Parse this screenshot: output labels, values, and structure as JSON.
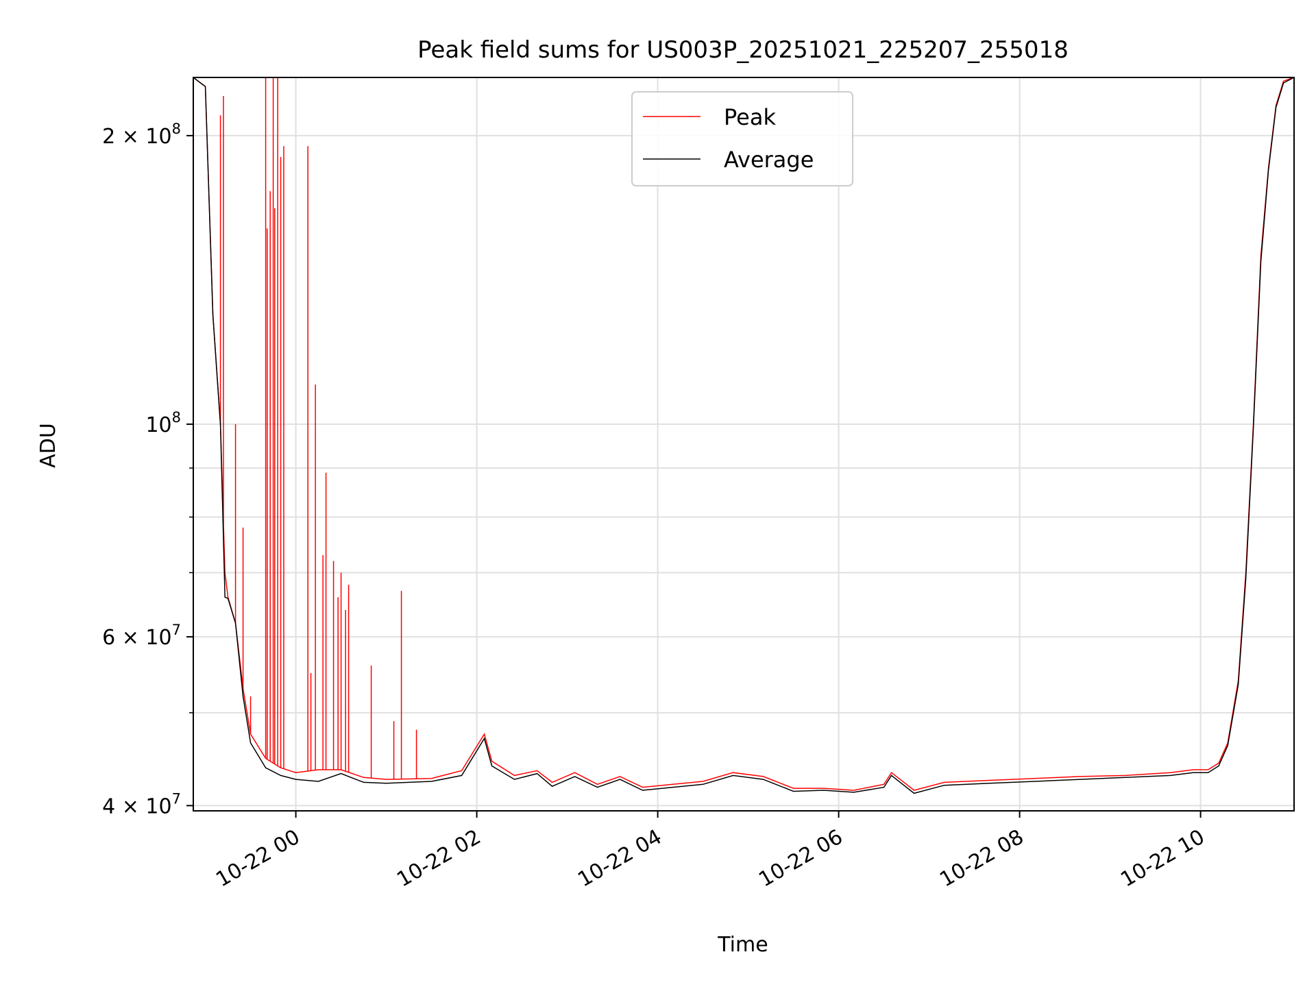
{
  "chart_data": {
    "type": "line",
    "title": "Peak field sums for US003P_20251021_225207_255018",
    "xlabel": "Time",
    "ylabel": "ADU",
    "x_ticks": [
      "10-22 00",
      "10-22 02",
      "10-22 04",
      "10-22 06",
      "10-22 08",
      "10-22 10"
    ],
    "y_ticks": [
      {
        "value": 40000000,
        "base": "4 × 10",
        "exp": "7"
      },
      {
        "value": 60000000,
        "base": "6 × 10",
        "exp": "7"
      },
      {
        "value": 100000000,
        "base": "10",
        "exp": "8"
      },
      {
        "value": 200000000,
        "base": "2 × 10",
        "exp": "8"
      }
    ],
    "y_scale": "log",
    "xlim": [
      "2025-10-21 22:52",
      "2025-10-22 11:02"
    ],
    "ylim": [
      39500000,
      230000000
    ],
    "grid": true,
    "legend_position": "top-center",
    "series": [
      {
        "name": "Peak",
        "color": "#ff0000",
        "x": [
          "2025-10-21 22:52",
          "2025-10-21 23:00",
          "2025-10-21 23:05",
          "2025-10-21 23:10",
          "2025-10-21 23:13",
          "2025-10-21 23:15",
          "2025-10-21 23:20",
          "2025-10-21 23:25",
          "2025-10-21 23:30",
          "2025-10-21 23:40",
          "2025-10-21 23:50",
          "2025-10-22 00:00",
          "2025-10-22 00:15",
          "2025-10-22 00:30",
          "2025-10-22 00:45",
          "2025-10-22 01:00",
          "2025-10-22 01:30",
          "2025-10-22 01:50",
          "2025-10-22 02:05",
          "2025-10-22 02:10",
          "2025-10-22 02:25",
          "2025-10-22 02:40",
          "2025-10-22 02:50",
          "2025-10-22 03:05",
          "2025-10-22 03:20",
          "2025-10-22 03:35",
          "2025-10-22 03:50",
          "2025-10-22 04:10",
          "2025-10-22 04:30",
          "2025-10-22 04:50",
          "2025-10-22 05:10",
          "2025-10-22 05:30",
          "2025-10-22 05:50",
          "2025-10-22 06:10",
          "2025-10-22 06:30",
          "2025-10-22 06:35",
          "2025-10-22 06:50",
          "2025-10-22 07:10",
          "2025-10-22 07:40",
          "2025-10-22 08:10",
          "2025-10-22 08:40",
          "2025-10-22 09:10",
          "2025-10-22 09:40",
          "2025-10-22 09:55",
          "2025-10-22 10:05",
          "2025-10-22 10:12",
          "2025-10-22 10:18",
          "2025-10-22 10:25",
          "2025-10-22 10:30",
          "2025-10-22 10:35",
          "2025-10-22 10:40",
          "2025-10-22 10:45",
          "2025-10-22 10:50",
          "2025-10-22 10:55",
          "2025-10-22 11:02"
        ],
        "values": [
          230000000,
          225000000,
          130000000,
          100000000,
          70000000,
          66000000,
          62000000,
          53000000,
          47500000,
          44800000,
          43800000,
          43300000,
          43600000,
          43600000,
          42800000,
          42600000,
          42700000,
          43500000,
          47500000,
          44500000,
          43000000,
          43500000,
          42300000,
          43300000,
          42100000,
          42900000,
          41800000,
          42100000,
          42400000,
          43300000,
          42900000,
          41700000,
          41700000,
          41500000,
          42100000,
          43300000,
          41500000,
          42300000,
          42500000,
          42700000,
          42900000,
          43000000,
          43300000,
          43600000,
          43600000,
          44300000,
          46500000,
          54000000,
          70000000,
          100000000,
          150000000,
          185000000,
          215000000,
          228000000,
          230000000
        ]
      },
      {
        "name": "Average",
        "color": "#000000",
        "x": [
          "2025-10-21 22:52",
          "2025-10-21 23:00",
          "2025-10-21 23:05",
          "2025-10-21 23:10",
          "2025-10-21 23:13",
          "2025-10-21 23:15",
          "2025-10-21 23:20",
          "2025-10-21 23:25",
          "2025-10-21 23:30",
          "2025-10-21 23:40",
          "2025-10-21 23:50",
          "2025-10-22 00:00",
          "2025-10-22 00:15",
          "2025-10-22 00:30",
          "2025-10-22 00:45",
          "2025-10-22 01:00",
          "2025-10-22 01:30",
          "2025-10-22 01:50",
          "2025-10-22 02:05",
          "2025-10-22 02:10",
          "2025-10-22 02:25",
          "2025-10-22 02:40",
          "2025-10-22 02:50",
          "2025-10-22 03:05",
          "2025-10-22 03:20",
          "2025-10-22 03:35",
          "2025-10-22 03:50",
          "2025-10-22 04:10",
          "2025-10-22 04:30",
          "2025-10-22 04:50",
          "2025-10-22 05:10",
          "2025-10-22 05:30",
          "2025-10-22 05:50",
          "2025-10-22 06:10",
          "2025-10-22 06:30",
          "2025-10-22 06:35",
          "2025-10-22 06:50",
          "2025-10-22 07:10",
          "2025-10-22 07:40",
          "2025-10-22 08:10",
          "2025-10-22 08:40",
          "2025-10-22 09:10",
          "2025-10-22 09:40",
          "2025-10-22 09:55",
          "2025-10-22 10:05",
          "2025-10-22 10:12",
          "2025-10-22 10:18",
          "2025-10-22 10:25",
          "2025-10-22 10:30",
          "2025-10-22 10:35",
          "2025-10-22 10:40",
          "2025-10-22 10:45",
          "2025-10-22 10:50",
          "2025-10-22 10:55",
          "2025-10-22 11:02"
        ],
        "values": [
          230000000,
          225000000,
          130000000,
          100000000,
          66000000,
          65800000,
          62000000,
          52000000,
          46500000,
          43800000,
          43000000,
          42600000,
          42400000,
          43200000,
          42300000,
          42200000,
          42400000,
          43000000,
          47000000,
          44000000,
          42600000,
          43200000,
          41900000,
          42900000,
          41800000,
          42600000,
          41500000,
          41800000,
          42100000,
          43000000,
          42600000,
          41400000,
          41500000,
          41300000,
          41800000,
          43000000,
          41200000,
          42000000,
          42200000,
          42400000,
          42600000,
          42800000,
          43000000,
          43300000,
          43300000,
          44000000,
          46200000,
          53500000,
          69000000,
          99000000,
          148000000,
          184000000,
          214000000,
          227000000,
          230000000
        ]
      }
    ],
    "spikes": {
      "series": "Peak",
      "x": [
        "2025-10-21 23:10",
        "2025-10-21 23:12",
        "2025-10-21 23:20",
        "2025-10-21 23:25",
        "2025-10-21 23:30",
        "2025-10-21 23:40",
        "2025-10-21 23:41",
        "2025-10-21 23:43",
        "2025-10-21 23:45",
        "2025-10-21 23:46",
        "2025-10-21 23:48",
        "2025-10-21 23:50",
        "2025-10-21 23:52",
        "2025-10-22 00:08",
        "2025-10-22 00:10",
        "2025-10-22 00:13",
        "2025-10-22 00:18",
        "2025-10-22 00:20",
        "2025-10-22 00:25",
        "2025-10-22 00:28",
        "2025-10-22 00:30",
        "2025-10-22 00:33",
        "2025-10-22 00:35",
        "2025-10-22 00:50",
        "2025-10-22 01:05",
        "2025-10-22 01:10",
        "2025-10-22 01:20"
      ],
      "values": [
        210000000,
        220000000,
        100000000,
        78000000,
        52000000,
        230000000,
        160000000,
        175000000,
        230000000,
        168000000,
        230000000,
        190000000,
        195000000,
        195000000,
        55000000,
        110000000,
        73000000,
        89000000,
        72000000,
        66000000,
        70000000,
        64000000,
        68000000,
        56000000,
        49000000,
        67000000,
        48000000
      ]
    }
  }
}
